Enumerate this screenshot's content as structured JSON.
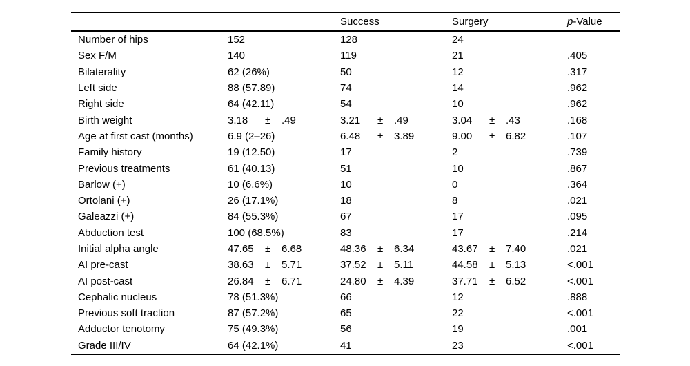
{
  "page": {
    "background": "#ffffff",
    "text_color": "#000000",
    "rule_color": "#000000"
  },
  "table": {
    "plus_minus": "±",
    "header": {
      "col_label": "",
      "col_total": "",
      "col_success": "Success",
      "col_surgery": "Surgery",
      "col_pvalue_italic": "p",
      "col_pvalue_rest": "-Value"
    },
    "rows": [
      {
        "label": "Number of hips",
        "total": [
          "152"
        ],
        "success": [
          "128"
        ],
        "surgery": [
          "24"
        ],
        "p": ""
      },
      {
        "label": "Sex F/M",
        "total": [
          "140"
        ],
        "success": [
          "119"
        ],
        "surgery": [
          "21"
        ],
        "p": ".405"
      },
      {
        "label": "Bilaterality",
        "total": [
          "62 (26%)"
        ],
        "success": [
          "50"
        ],
        "surgery": [
          "12"
        ],
        "p": ".317"
      },
      {
        "label": "Left side",
        "total": [
          "88 (57.89)"
        ],
        "success": [
          "74"
        ],
        "surgery": [
          "14"
        ],
        "p": ".962"
      },
      {
        "label": "Right side",
        "total": [
          "64 (42.11)"
        ],
        "success": [
          "54"
        ],
        "surgery": [
          "10"
        ],
        "p": ".962"
      },
      {
        "label": "Birth weight",
        "total": [
          "3.18",
          ".49"
        ],
        "success": [
          "3.21",
          ".49"
        ],
        "surgery": [
          "3.04",
          ".43"
        ],
        "p": ".168"
      },
      {
        "label": "Age at first cast (months)",
        "total": [
          "6.9 (2–26)"
        ],
        "success": [
          "6.48",
          "3.89"
        ],
        "surgery": [
          "9.00",
          "6.82"
        ],
        "p": ".107"
      },
      {
        "label": "Family history",
        "total": [
          "19 (12.50)"
        ],
        "success": [
          "17"
        ],
        "surgery": [
          "2"
        ],
        "p": ".739"
      },
      {
        "label": "Previous treatments",
        "total": [
          "61 (40.13)"
        ],
        "success": [
          "51"
        ],
        "surgery": [
          "10"
        ],
        "p": ".867"
      },
      {
        "label": "Barlow (+)",
        "total": [
          "10 (6.6%)"
        ],
        "success": [
          "10"
        ],
        "surgery": [
          "0"
        ],
        "p": ".364"
      },
      {
        "label": "Ortolani (+)",
        "total": [
          "26 (17.1%)"
        ],
        "success": [
          "18"
        ],
        "surgery": [
          "8"
        ],
        "p": ".021"
      },
      {
        "label": "Galeazzi (+)",
        "total": [
          "84 (55.3%)"
        ],
        "success": [
          "67"
        ],
        "surgery": [
          "17"
        ],
        "p": ".095"
      },
      {
        "label": "Abduction test",
        "total": [
          "100 (68.5%)"
        ],
        "success": [
          "83"
        ],
        "surgery": [
          "17"
        ],
        "p": ".214"
      },
      {
        "label": "Initial alpha angle",
        "total": [
          "47.65",
          "6.68"
        ],
        "success": [
          "48.36",
          "6.34"
        ],
        "surgery": [
          "43.67",
          "7.40"
        ],
        "p": ".021"
      },
      {
        "label": "AI pre-cast",
        "total": [
          "38.63",
          "5.71"
        ],
        "success": [
          "37.52",
          "5.11"
        ],
        "surgery": [
          "44.58",
          "5.13"
        ],
        "p": "<.001"
      },
      {
        "label": "AI post-cast",
        "total": [
          "26.84",
          "6.71"
        ],
        "success": [
          "24.80",
          "4.39"
        ],
        "surgery": [
          "37.71",
          "6.52"
        ],
        "p": "<.001"
      },
      {
        "label": "Cephalic nucleus",
        "total": [
          "78 (51.3%)"
        ],
        "success": [
          "66"
        ],
        "surgery": [
          "12"
        ],
        "p": ".888"
      },
      {
        "label": "Previous soft traction",
        "total": [
          "87 (57.2%)"
        ],
        "success": [
          "65"
        ],
        "surgery": [
          "22"
        ],
        "p": "<.001"
      },
      {
        "label": "Adductor tenotomy",
        "total": [
          "75 (49.3%)"
        ],
        "success": [
          "56"
        ],
        "surgery": [
          "19"
        ],
        "p": ".001"
      },
      {
        "label": "Grade III/IV",
        "total": [
          "64 (42.1%)"
        ],
        "success": [
          "41"
        ],
        "surgery": [
          "23"
        ],
        "p": "<.001"
      }
    ]
  }
}
